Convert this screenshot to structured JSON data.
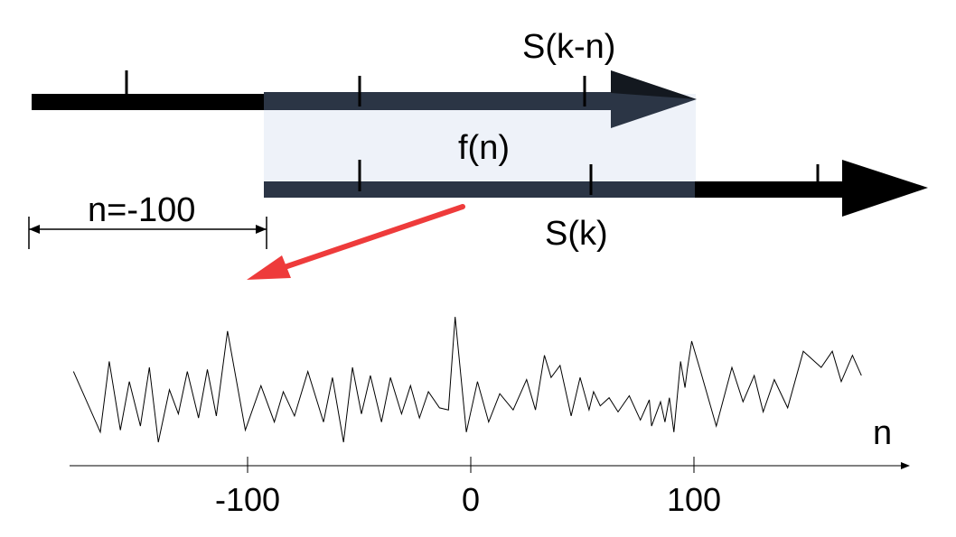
{
  "labels": {
    "shifted_signal": "S(k-n)",
    "signal": "S(k)",
    "correlation": "f(n)",
    "shift_note": "n=-100",
    "axis_var": "n"
  },
  "chart_data": {
    "type": "line",
    "title": "",
    "xlabel": "n",
    "ylabel": "",
    "xlim": [
      -178,
      178
    ],
    "ylim": [
      0,
      1
    ],
    "ticks": [
      {
        "value": -100,
        "label": "-100"
      },
      {
        "value": 0,
        "label": "0"
      },
      {
        "value": 100,
        "label": "100"
      }
    ],
    "series": [
      {
        "x": [
          -178,
          -166,
          -162,
          -157,
          -153,
          -148,
          -144,
          -140,
          -135,
          -131,
          -127,
          -122,
          -118,
          -114,
          -109,
          -101,
          -94,
          -88,
          -84,
          -79,
          -73,
          -66,
          -62,
          -57,
          -53,
          -49,
          -45,
          -40,
          -36,
          -31,
          -27,
          -23,
          -19,
          -14,
          -10,
          -7,
          -2,
          3,
          8,
          13,
          19,
          25,
          29,
          33,
          36,
          40,
          45,
          49,
          53,
          55,
          58,
          62,
          66,
          71,
          76,
          80,
          81,
          85,
          87,
          89,
          91,
          94,
          96,
          97,
          99,
          103,
          110,
          117,
          122,
          127,
          131,
          136,
          142,
          149,
          157,
          162,
          166,
          171,
          175
        ],
        "y": [
          0.35,
          0.05,
          0.4,
          0.06,
          0.3,
          0.08,
          0.37,
          0.0,
          0.26,
          0.14,
          0.35,
          0.12,
          0.36,
          0.13,
          0.55,
          0.06,
          0.28,
          0.1,
          0.25,
          0.13,
          0.35,
          0.1,
          0.32,
          0.0,
          0.37,
          0.14,
          0.33,
          0.1,
          0.32,
          0.14,
          0.28,
          0.12,
          0.25,
          0.17,
          0.16,
          0.62,
          0.05,
          0.3,
          0.1,
          0.24,
          0.16,
          0.31,
          0.16,
          0.43,
          0.32,
          0.38,
          0.13,
          0.32,
          0.16,
          0.25,
          0.18,
          0.22,
          0.15,
          0.23,
          0.11,
          0.21,
          0.08,
          0.2,
          0.1,
          0.22,
          0.05,
          0.4,
          0.27,
          0.36,
          0.5,
          0.35,
          0.08,
          0.37,
          0.2,
          0.33,
          0.15,
          0.31,
          0.17,
          0.45,
          0.37,
          0.45,
          0.3,
          0.43,
          0.33
        ]
      }
    ]
  }
}
